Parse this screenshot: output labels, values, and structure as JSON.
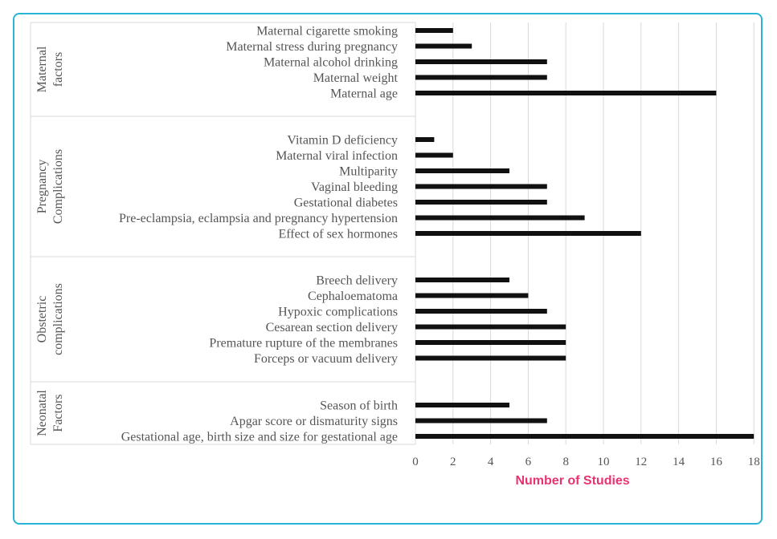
{
  "chart_data": {
    "type": "bar",
    "orientation": "horizontal",
    "xlabel": "Number of Studies",
    "xlim": [
      0,
      18
    ],
    "xticks": [
      0,
      2,
      4,
      6,
      8,
      10,
      12,
      14,
      16,
      18
    ],
    "grid": true,
    "bar_color": "#111111",
    "xlabel_color": "#e8336e",
    "groups": [
      {
        "name": "Maternal factors",
        "name_lines": [
          "Maternal",
          "factors"
        ],
        "categories": [
          "Maternal cigarette smoking",
          "Maternal stress during pregnancy",
          "Maternal alcohol drinking",
          "Maternal weight",
          "Maternal age"
        ],
        "values": [
          2,
          3,
          7,
          7,
          16
        ]
      },
      {
        "name": "Pregnancy Complications",
        "name_lines": [
          "Pregnancy",
          "Complications"
        ],
        "categories": [
          "Vitamin D deficiency",
          "Maternal viral infection",
          "Multiparity",
          "Vaginal bleeding",
          "Gestational diabetes",
          "Pre-eclampsia, eclampsia and pregnancy hypertension",
          "Effect of sex hormones"
        ],
        "values": [
          1,
          2,
          5,
          7,
          7,
          9,
          12
        ]
      },
      {
        "name": "Obstetric complications",
        "name_lines": [
          "Obstetric",
          "complications"
        ],
        "categories": [
          "Breech delivery",
          "Cephaloematoma",
          "Hypoxic complications",
          "Cesarean section delivery",
          "Premature rupture of the membranes",
          "Forceps or vacuum delivery"
        ],
        "values": [
          5,
          6,
          7,
          8,
          8,
          8
        ]
      },
      {
        "name": "Neonatal Factors",
        "name_lines": [
          "Neonatal",
          "Factors"
        ],
        "categories": [
          "Season of birth",
          "Apgar score or dismaturity signs",
          "Gestational age, birth size and size for gestational age"
        ],
        "values": [
          5,
          7,
          18
        ]
      }
    ]
  }
}
